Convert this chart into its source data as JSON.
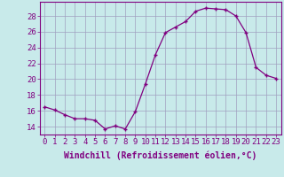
{
  "x": [
    0,
    1,
    2,
    3,
    4,
    5,
    6,
    7,
    8,
    9,
    10,
    11,
    12,
    13,
    14,
    15,
    16,
    17,
    18,
    19,
    20,
    21,
    22,
    23
  ],
  "y": [
    16.5,
    16.1,
    15.5,
    15.0,
    15.0,
    14.8,
    13.7,
    14.1,
    13.7,
    15.9,
    19.4,
    23.1,
    25.9,
    26.6,
    27.3,
    28.6,
    29.0,
    28.9,
    28.8,
    28.0,
    25.9,
    21.5,
    20.5,
    20.1
  ],
  "ylim": [
    13.0,
    29.8
  ],
  "yticks": [
    14,
    16,
    18,
    20,
    22,
    24,
    26,
    28
  ],
  "xlabel": "Windchill (Refroidissement éolien,°C)",
  "line_color": "#800080",
  "marker_color": "#800080",
  "bg_color": "#c8eaea",
  "grid_color": "#a0a0c0",
  "xlabel_color": "#800080",
  "tick_color": "#800080",
  "spine_color": "#800080",
  "tick_fontsize": 6.5,
  "xlabel_fontsize": 7.0
}
